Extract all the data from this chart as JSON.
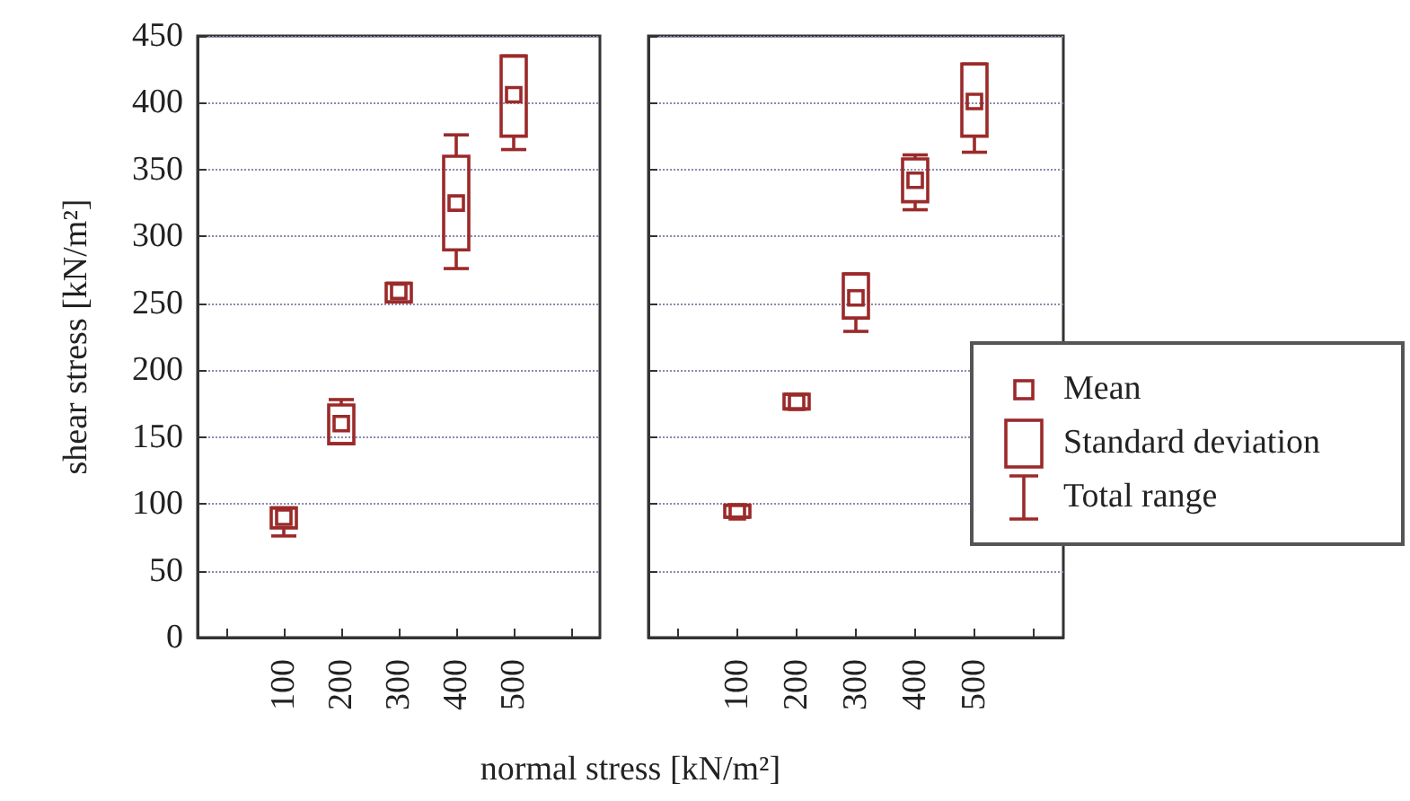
{
  "chart_data": [
    {
      "type": "box",
      "ylabel": "shear stress [kN/m²]",
      "xlabel": "normal stress [kN/m²]",
      "categories": [
        null,
        "100",
        "200",
        "300",
        "400",
        "500",
        null
      ],
      "color": "#9b2a2a",
      "ylim": [
        0,
        450
      ],
      "yticks": [
        0,
        50,
        100,
        150,
        200,
        250,
        300,
        350,
        400,
        450
      ],
      "grid": "y",
      "boxes": [
        null,
        {
          "low": 76,
          "q1": 82,
          "median": 90,
          "q3": 97,
          "high": 97
        },
        {
          "low": 145,
          "q1": 145,
          "median": 160,
          "q3": 174,
          "high": 178
        },
        {
          "low": 251,
          "q1": 251,
          "median": 259,
          "q3": 265,
          "high": 265
        },
        {
          "low": 276,
          "q1": 290,
          "median": 325,
          "q3": 360,
          "high": 376
        },
        {
          "low": 365,
          "q1": 375,
          "median": 406,
          "q3": 435,
          "high": 435
        },
        null
      ]
    },
    {
      "type": "box",
      "categories": [
        null,
        "100",
        "200",
        "300",
        "400",
        "500",
        null
      ],
      "color": "#9b2a2a",
      "ylim": [
        0,
        450
      ],
      "yticks": [
        0,
        50,
        100,
        150,
        200,
        250,
        300,
        350,
        400,
        450
      ],
      "grid": "y",
      "tick_labels": "x",
      "annotations": [
        "Mean",
        "Standard deviation",
        "Total range"
      ],
      "boxes": [
        null,
        {
          "low": 90,
          "q1": 90,
          "median": 94,
          "q3": 99,
          "high": 99
        },
        {
          "low": 171,
          "q1": 171,
          "median": 176,
          "q3": 182,
          "high": 182
        },
        {
          "low": 229,
          "q1": 239,
          "median": 254,
          "q3": 272,
          "high": 272
        },
        {
          "low": 320,
          "q1": 326,
          "median": 342,
          "q3": 358,
          "high": 361
        },
        {
          "low": 363,
          "q1": 375,
          "median": 401,
          "q3": 429,
          "high": 429
        },
        null
      ]
    }
  ]
}
